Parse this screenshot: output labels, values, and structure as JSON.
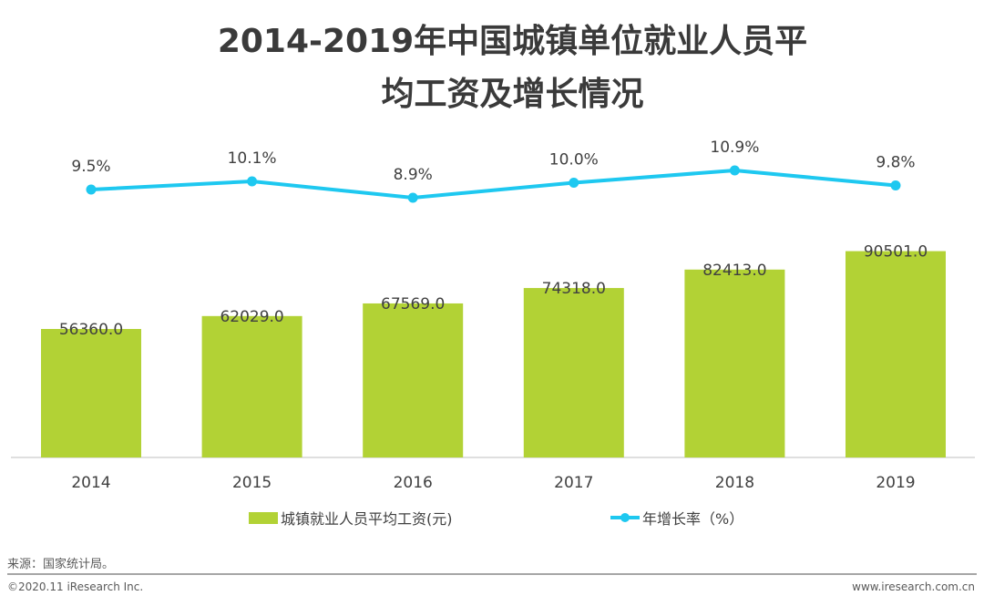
{
  "chart_data": {
    "type": "bar+line",
    "title_line1": "2014-2019年中国城镇单位就业人员平",
    "title_line2": "均工资及增长情况",
    "categories": [
      "2014",
      "2015",
      "2016",
      "2017",
      "2018",
      "2019"
    ],
    "series": [
      {
        "name": "城镇就业人员平均工资(元)",
        "type": "bar",
        "color": "#b2d235",
        "values": [
          56360.0,
          62029.0,
          67569.0,
          74318.0,
          82413.0,
          90501.0
        ],
        "labels": [
          "56360.0",
          "62029.0",
          "67569.0",
          "74318.0",
          "82413.0",
          "90501.0"
        ]
      },
      {
        "name": "年增长率（%）",
        "type": "line",
        "color": "#1ec8f0",
        "values": [
          9.5,
          10.1,
          8.9,
          10.0,
          10.9,
          9.8
        ],
        "labels": [
          "9.5%",
          "10.1%",
          "8.9%",
          "10.0%",
          "10.9%",
          "9.8%"
        ]
      }
    ]
  },
  "footer": {
    "source": "来源：国家统计局。",
    "copyright": "©2020.11 iResearch Inc.",
    "website": "www.iresearch.com.cn"
  }
}
